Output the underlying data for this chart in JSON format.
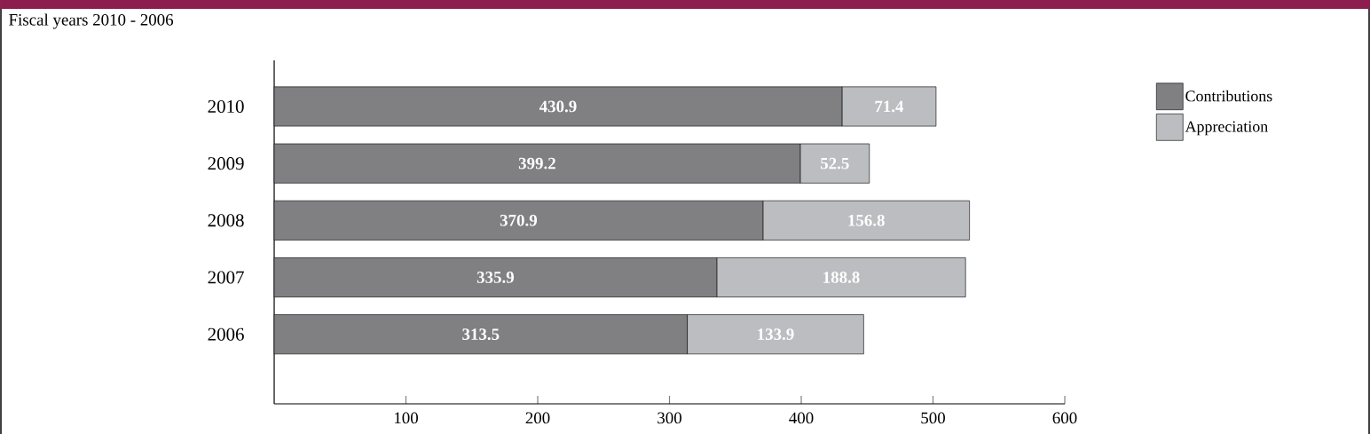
{
  "chart_data": {
    "type": "bar",
    "orientation": "horizontal",
    "stacked": true,
    "title": "Fiscal years 2010 - 2006",
    "categories": [
      "2010",
      "2009",
      "2008",
      "2007",
      "2006"
    ],
    "series": [
      {
        "name": "Contributions",
        "color": "#808083",
        "values": [
          430.9,
          399.2,
          370.9,
          335.9,
          313.5
        ]
      },
      {
        "name": "Appreciation",
        "color": "#bcbdc0",
        "values": [
          71.4,
          52.5,
          156.8,
          188.8,
          133.9
        ]
      }
    ],
    "xlim": [
      0,
      600
    ],
    "xticks": [
      100,
      200,
      300,
      400,
      500,
      600
    ],
    "data_labels": true,
    "legend": "top right",
    "grid": false
  }
}
